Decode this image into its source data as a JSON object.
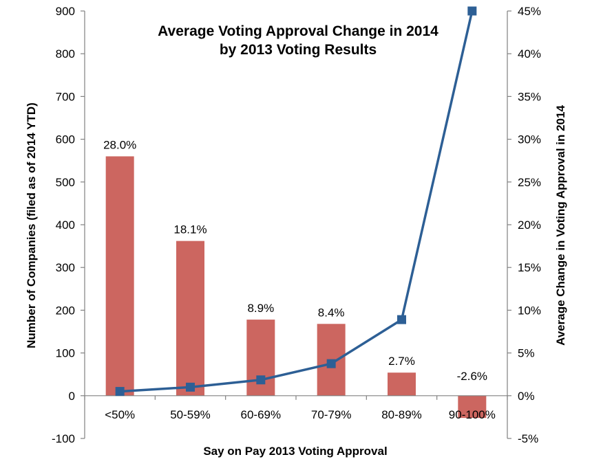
{
  "chart_data": {
    "type": "bar",
    "title_lines": [
      "Average Voting Approval Change in 2014",
      "by 2013 Voting Results"
    ],
    "xlabel": "Say on Pay 2013 Voting Approval",
    "ylabel": "Number of Companies (filed as of 2014 YTD)",
    "y2label": "Average Change in Voting Approval in 2014",
    "categories": [
      "<50%",
      "50-59%",
      "60-69%",
      "70-79%",
      "80-89%",
      "90-100%"
    ],
    "series": [
      {
        "name": "Average Change in Voting Approval in 2014",
        "kind": "bar",
        "axis": "right",
        "values": [
          28.0,
          18.1,
          8.9,
          8.4,
          2.7,
          -2.6
        ],
        "labels": [
          "28.0%",
          "18.1%",
          "8.9%",
          "8.4%",
          "2.7%",
          "-2.6%"
        ],
        "color": "#cc6660"
      },
      {
        "name": "Number of Companies",
        "kind": "line",
        "axis": "left",
        "values": [
          10,
          20,
          37,
          75,
          178,
          900
        ],
        "color": "#2d5f95"
      }
    ],
    "ylim": [
      -100,
      900
    ],
    "yticks": [
      -100,
      0,
      100,
      200,
      300,
      400,
      500,
      600,
      700,
      800,
      900
    ],
    "ytick_labels": [
      "-100",
      "0",
      "100",
      "200",
      "300",
      "400",
      "500",
      "600",
      "700",
      "800",
      "900"
    ],
    "y2lim": [
      -5,
      45
    ],
    "y2ticks": [
      -5,
      0,
      5,
      10,
      15,
      20,
      25,
      30,
      35,
      40,
      45
    ],
    "y2tick_labels": [
      "-5%",
      "0%",
      "5%",
      "10%",
      "15%",
      "20%",
      "25%",
      "30%",
      "35%",
      "40%",
      "45%"
    ],
    "grid": false,
    "legend": "none"
  }
}
